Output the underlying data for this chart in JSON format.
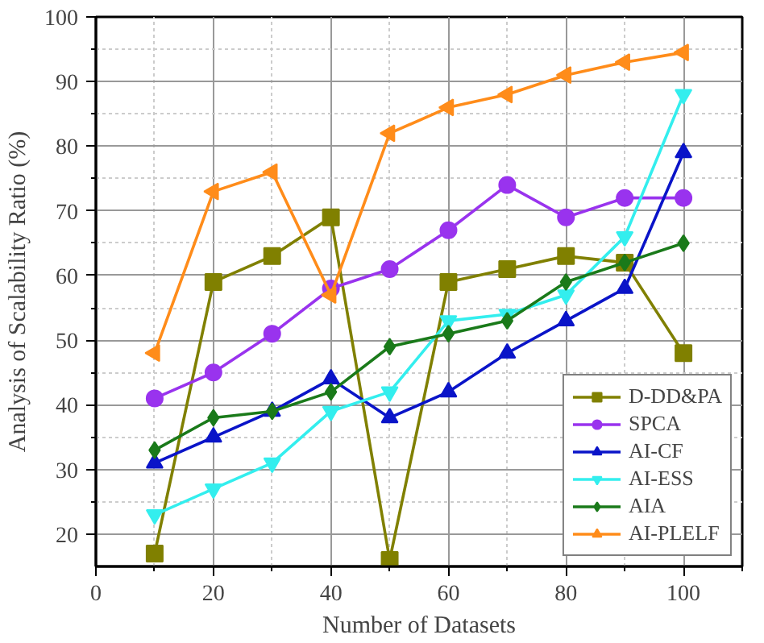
{
  "chart_data": {
    "type": "line",
    "xlabel": "Number of Datasets",
    "ylabel": "Analysis of Scalability Ratio (%)",
    "x": [
      10,
      20,
      30,
      40,
      50,
      60,
      70,
      80,
      90,
      100
    ],
    "xlim": [
      0,
      110
    ],
    "xticks": [
      0,
      20,
      40,
      60,
      80,
      100
    ],
    "ylim": [
      15,
      100
    ],
    "yticks": [
      20,
      30,
      40,
      50,
      60,
      70,
      80,
      90,
      100
    ],
    "grid": true,
    "legend": "bottom right",
    "line_style": "solid",
    "series": [
      {
        "name": "D-DD&PA",
        "color": "#808000",
        "marker": "square",
        "values": [
          17,
          59,
          63,
          69,
          16,
          59,
          61,
          63,
          62,
          48
        ]
      },
      {
        "name": "SPCA",
        "color": "#9933ee",
        "marker": "circle",
        "values": [
          41,
          45,
          51,
          58,
          61,
          67,
          74,
          69,
          72,
          72
        ]
      },
      {
        "name": "AI-CF",
        "color": "#0a14c8",
        "marker": "triangle",
        "values": [
          31,
          35,
          39,
          44,
          38,
          42,
          48,
          53,
          58,
          79
        ]
      },
      {
        "name": "AI-ESS",
        "color": "#33eeee",
        "marker": "triangle-down",
        "values": [
          23,
          27,
          31,
          39,
          42,
          53,
          54,
          57,
          66,
          88
        ]
      },
      {
        "name": "AIA",
        "color": "#1a7a1a",
        "marker": "diamond",
        "values": [
          33,
          38,
          39,
          42,
          49,
          51,
          53,
          59,
          62,
          65
        ]
      },
      {
        "name": "AI-PLELF",
        "color": "#ff8c1a",
        "marker": "triangle-left",
        "values": [
          48,
          73,
          76,
          57,
          82,
          86,
          88,
          91,
          93,
          94.5
        ]
      }
    ]
  }
}
